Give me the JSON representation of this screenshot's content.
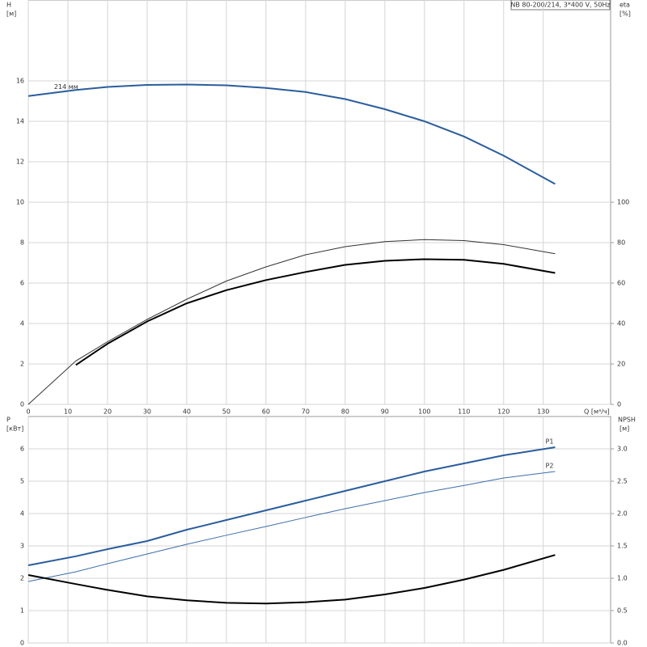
{
  "chart_data": [
    {
      "type": "line",
      "title": "NB 80-200/214, 3*400 V, 50Hz",
      "x_label": "Q [м³/ч]",
      "y_label": "H",
      "y_unit": "[м]",
      "y2_label": "eta",
      "y2_unit": "[%]",
      "x": [
        0,
        12,
        20,
        30,
        40,
        50,
        60,
        70,
        80,
        90,
        100,
        110,
        120,
        133
      ],
      "xlim": [
        0,
        147
      ],
      "xticks": [
        0,
        10,
        20,
        30,
        40,
        50,
        60,
        70,
        80,
        90,
        100,
        110,
        120,
        130
      ],
      "ylim": [
        0,
        20
      ],
      "yticks": [
        0,
        2,
        4,
        6,
        8,
        10,
        12,
        14,
        16
      ],
      "y2lim": [
        0,
        200
      ],
      "y2ticks": [
        0,
        20,
        40,
        60,
        80,
        100
      ],
      "grid": true,
      "series": [
        {
          "name": "214 мм",
          "color": "#2a5d9c",
          "values": [
            15.25,
            15.55,
            15.7,
            15.8,
            15.82,
            15.78,
            15.65,
            15.45,
            15.1,
            14.6,
            14.0,
            13.25,
            12.3,
            10.9
          ]
        },
        {
          "color": "#333333",
          "axis": "y2",
          "values": [
            0,
            21.5,
            31,
            42,
            52,
            61,
            68,
            74,
            78,
            80.5,
            81.5,
            81,
            79,
            74.5
          ]
        },
        {
          "color": "#000000",
          "axis": "y2",
          "values": [
            null,
            19.5,
            30,
            41,
            50,
            56.5,
            61.5,
            65.5,
            69,
            71,
            71.8,
            71.5,
            69.5,
            65
          ]
        }
      ]
    },
    {
      "type": "line",
      "y_label": "P",
      "y_unit": "[кВт]",
      "y2_label": "NPSH",
      "y2_unit": "[м]",
      "x": [
        0,
        12,
        20,
        30,
        40,
        50,
        60,
        70,
        80,
        90,
        100,
        110,
        120,
        133
      ],
      "xlim": [
        0,
        147
      ],
      "ylim": [
        0,
        7
      ],
      "yticks": [
        0,
        1,
        2,
        3,
        4,
        5,
        6
      ],
      "y2lim": [
        0,
        3.5
      ],
      "y2ticks": [
        {
          "value": 0,
          "label": "0.0"
        },
        0.5,
        {
          "value": 1,
          "label": "1.0"
        },
        1.5,
        {
          "value": 2,
          "label": "2.0"
        },
        2.5,
        {
          "value": 3,
          "label": "3.0"
        }
      ],
      "grid": true,
      "series": [
        {
          "name": "P1",
          "color": "#2a5d9c",
          "values": [
            2.4,
            2.68,
            2.9,
            3.15,
            3.5,
            3.8,
            4.1,
            4.4,
            4.7,
            5.0,
            5.3,
            5.55,
            5.8,
            6.05
          ]
        },
        {
          "name": "P2",
          "color": "#3b6ea8",
          "values": [
            1.9,
            2.2,
            2.45,
            2.75,
            3.05,
            3.33,
            3.6,
            3.88,
            4.15,
            4.4,
            4.65,
            4.87,
            5.1,
            5.3
          ]
        },
        {
          "color": "#000000",
          "axis": "y2",
          "values": [
            1.05,
            0.91,
            0.82,
            0.72,
            0.66,
            0.62,
            0.61,
            0.63,
            0.67,
            0.75,
            0.85,
            0.98,
            1.13,
            1.36
          ]
        }
      ]
    }
  ]
}
